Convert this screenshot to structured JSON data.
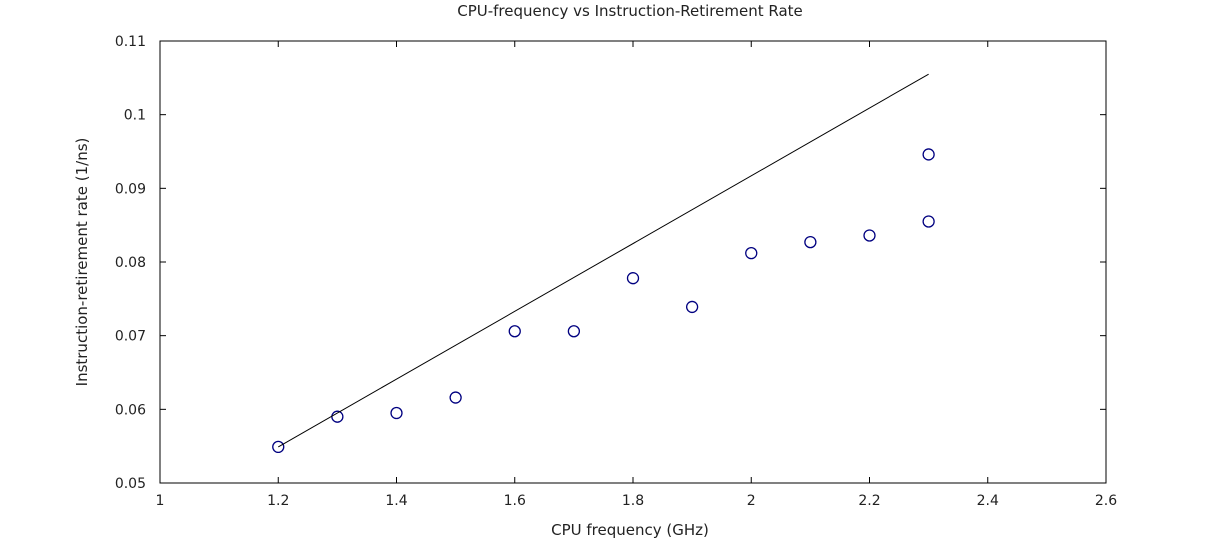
{
  "chart_data": {
    "type": "scatter",
    "title": "CPU-frequency vs Instruction-Retirement Rate",
    "xlabel": "CPU frequency (GHz)",
    "ylabel": "Instruction-retirement rate (1/ns)",
    "xlim": [
      1,
      2.6
    ],
    "ylim": [
      0.05,
      0.11
    ],
    "x_ticks": [
      "1",
      "1.2",
      "1.4",
      "1.6",
      "1.8",
      "2",
      "2.2",
      "2.4",
      "2.6"
    ],
    "y_ticks": [
      "0.05",
      "0.06",
      "0.07",
      "0.08",
      "0.09",
      "0.1",
      "0.11"
    ],
    "grid": false,
    "legend": "none",
    "series": [
      {
        "type": "scatter",
        "marker": "open-circle",
        "color": "#000080",
        "points": [
          [
            1.2,
            0.0549
          ],
          [
            1.3,
            0.059
          ],
          [
            1.4,
            0.0595
          ],
          [
            1.5,
            0.0616
          ],
          [
            1.6,
            0.0706
          ],
          [
            1.7,
            0.0706
          ],
          [
            1.8,
            0.0778
          ],
          [
            1.9,
            0.0739
          ],
          [
            2.0,
            0.0812
          ],
          [
            2.1,
            0.0827
          ],
          [
            2.2,
            0.0836
          ],
          [
            2.3,
            0.0855
          ],
          [
            2.3,
            0.0946
          ]
        ]
      },
      {
        "type": "line",
        "color": "#000000",
        "points": [
          [
            1.2,
            0.0549
          ],
          [
            2.3,
            0.1055
          ]
        ]
      }
    ]
  }
}
